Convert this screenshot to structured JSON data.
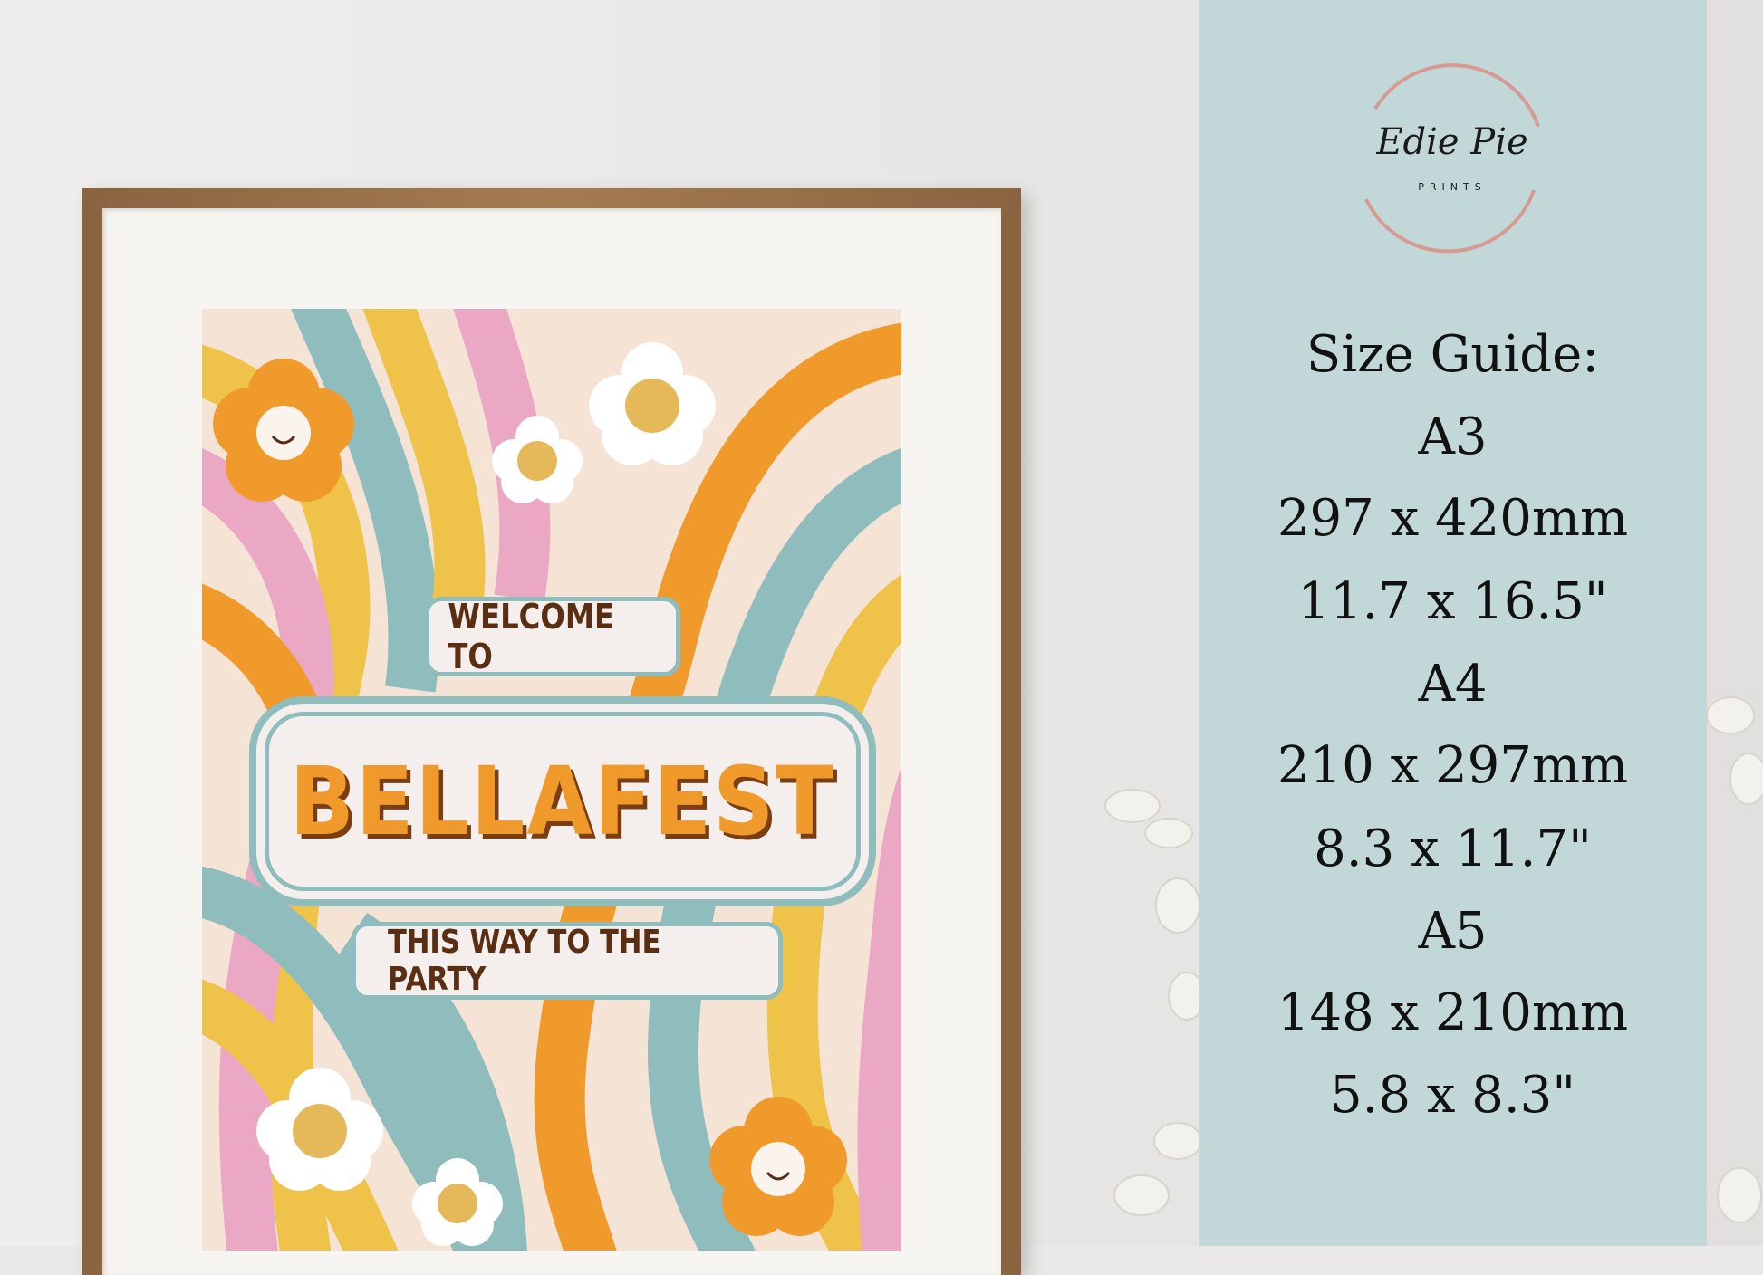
{
  "poster": {
    "welcome": "WELCOME TO",
    "title": "BELLAFEST",
    "subtitle": "THIS WAY TO THE PARTY"
  },
  "logo": {
    "script": "Edie Pie",
    "tagline": "PRINTS"
  },
  "size_guide": {
    "heading": "Size Guide:",
    "sizes": [
      {
        "name": "A3",
        "mm": "297 x 420mm",
        "inches": "11.7 x 16.5\""
      },
      {
        "name": "A4",
        "mm": "210 x 297mm",
        "inches": "8.3 x 11.7\""
      },
      {
        "name": "A5",
        "mm": "148 x 210mm",
        "inches": "5.8 x 8.3\""
      }
    ]
  },
  "colors": {
    "panel": "#c2d8d8",
    "orange": "#ef9a2a",
    "pink": "#eaa8c4",
    "yellow": "#efc24a",
    "teal": "#8fbcbd",
    "cream": "#f5e3d6",
    "brown": "#5a2e12",
    "rose_gold": "#d79a92"
  }
}
